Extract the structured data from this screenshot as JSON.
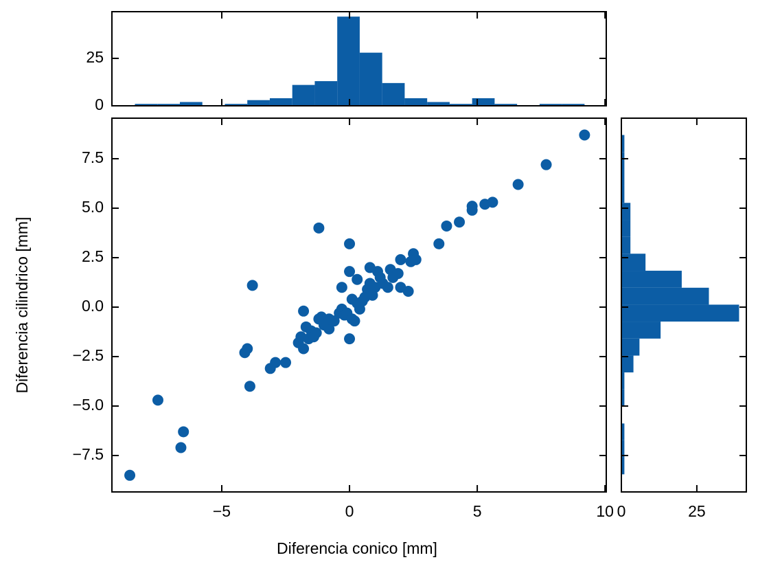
{
  "chart_data": [
    {
      "type": "scatter",
      "x_label": "Diferencia conico [mm]",
      "y_label": "Diferencia cilindrico [mm]",
      "color": "#0c5da5",
      "x": [
        -8.6,
        -7.5,
        -6.6,
        -6.5,
        -4.1,
        -4.0,
        -3.9,
        -3.8,
        -3.1,
        -2.9,
        -2.5,
        -2.0,
        -1.9,
        -1.8,
        -1.8,
        -1.7,
        -1.6,
        -1.5,
        -1.4,
        -1.3,
        -1.2,
        -1.2,
        -1.1,
        -1.0,
        -0.8,
        -0.8,
        -0.6,
        -0.4,
        -0.3,
        -0.3,
        -0.2,
        -0.1,
        0.0,
        0.0,
        0.0,
        0.1,
        0.1,
        0.2,
        0.3,
        0.3,
        0.4,
        0.5,
        0.6,
        0.7,
        0.8,
        0.8,
        0.9,
        1.0,
        1.1,
        1.2,
        1.3,
        1.5,
        1.6,
        1.7,
        1.9,
        2.0,
        2.0,
        2.3,
        2.4,
        2.5,
        2.6,
        3.5,
        3.8,
        4.3,
        4.8,
        4.8,
        5.3,
        5.6,
        6.6,
        7.7,
        9.2
      ],
      "values": [
        -8.5,
        -4.7,
        -7.1,
        -6.3,
        -2.3,
        -2.1,
        -4.0,
        1.1,
        -3.1,
        -2.8,
        -2.8,
        -1.8,
        -1.5,
        -2.1,
        -0.2,
        -1.0,
        -1.6,
        -1.2,
        -1.5,
        -1.3,
        4.0,
        -0.6,
        -0.5,
        -0.9,
        -1.1,
        -0.6,
        -0.7,
        -0.3,
        1.0,
        -0.1,
        -0.4,
        -0.3,
        3.2,
        -1.6,
        1.8,
        0.4,
        -0.6,
        -0.7,
        0.2,
        1.4,
        -0.1,
        0.3,
        0.5,
        0.9,
        2.0,
        1.2,
        0.6,
        1.0,
        1.8,
        1.5,
        1.2,
        1.0,
        1.9,
        1.5,
        1.7,
        1.0,
        2.4,
        0.8,
        2.3,
        2.7,
        2.4,
        3.2,
        4.1,
        4.3,
        4.9,
        5.1,
        5.2,
        5.3,
        6.2,
        7.2,
        8.7
      ],
      "xlim": [
        -9.3,
        10.05
      ],
      "xticks": [
        {
          "value": -5,
          "label": "−5"
        },
        0,
        5,
        10
      ],
      "ylim": [
        -9.34,
        9.55
      ],
      "yticks": [
        {
          "value": -7.5,
          "label": "−7.5"
        },
        {
          "value": -5,
          "label": "−5.0"
        },
        {
          "value": -2.5,
          "label": "−2.5"
        },
        {
          "value": 0,
          "label": "0.0"
        },
        2.5,
        {
          "value": 5,
          "label": "5.0"
        },
        7.5
      ]
    },
    {
      "type": "histogram",
      "orientation": "vertical",
      "color": "#0c5da5",
      "xticklabels": false,
      "bins": [
        -8.4,
        -7.52,
        -6.64,
        -5.76,
        -4.88,
        -4.0,
        -3.12,
        -2.24,
        -1.36,
        -0.48,
        0.4,
        1.28,
        2.16,
        3.04,
        3.92,
        4.8,
        5.68,
        6.56,
        7.44,
        8.32,
        9.2
      ],
      "values": [
        1,
        1,
        2,
        0,
        1,
        3,
        4,
        11,
        13,
        47,
        28,
        12,
        4,
        2,
        1,
        4,
        1,
        0,
        1,
        1
      ],
      "xlim": [
        -9.3,
        10.05
      ],
      "xticks": [
        -5,
        0,
        5,
        10
      ],
      "ylim": [
        0,
        49.6
      ],
      "yticks": [
        0,
        25
      ]
    },
    {
      "type": "histogram",
      "orientation": "horizontal",
      "color": "#0c5da5",
      "yticklabels": false,
      "bins": [
        -8.45,
        -7.59,
        -6.73,
        -5.88,
        -5.02,
        -4.16,
        -3.3,
        -2.45,
        -1.59,
        -0.73,
        0.125,
        0.98,
        1.84,
        2.7,
        3.55,
        4.41,
        5.27,
        6.13,
        6.98,
        7.84,
        8.7
      ],
      "values": [
        1,
        1,
        1,
        0,
        1,
        1,
        4,
        6,
        13,
        39,
        29,
        20,
        8,
        3,
        3,
        3,
        1,
        1,
        1,
        1
      ],
      "xlim": [
        0,
        41.4
      ],
      "xticks": [
        0,
        25
      ],
      "ylim": [
        -9.34,
        9.55
      ],
      "yticks": [
        -7.5,
        -5,
        -2.5,
        0,
        2.5,
        5,
        7.5
      ]
    }
  ]
}
